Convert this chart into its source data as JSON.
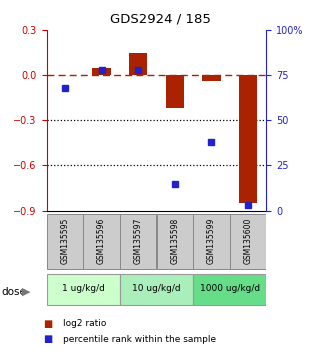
{
  "title": "GDS2924 / 185",
  "samples": [
    "GSM135595",
    "GSM135596",
    "GSM135597",
    "GSM135598",
    "GSM135599",
    "GSM135600"
  ],
  "log2_ratio": [
    0.0,
    0.05,
    0.15,
    -0.22,
    -0.04,
    -0.85
  ],
  "percentile_rank": [
    68,
    78,
    78,
    15,
    38,
    3
  ],
  "bar_color": "#aa2200",
  "dot_color": "#2222cc",
  "ylim_left": [
    -0.9,
    0.3
  ],
  "ylim_right": [
    0,
    100
  ],
  "yticks_left": [
    -0.9,
    -0.6,
    -0.3,
    0.0,
    0.3
  ],
  "yticks_right": [
    0,
    25,
    50,
    75,
    100
  ],
  "ytick_labels_right": [
    "0",
    "25",
    "50",
    "75",
    "100%"
  ],
  "hlines": [
    -0.3,
    -0.6
  ],
  "dose_groups": [
    {
      "label": "1 ug/kg/d",
      "start": 0,
      "end": 2,
      "color": "#ccffcc"
    },
    {
      "label": "10 ug/kg/d",
      "start": 2,
      "end": 4,
      "color": "#aaeebb"
    },
    {
      "label": "1000 ug/kg/d",
      "start": 4,
      "end": 6,
      "color": "#66dd88"
    }
  ],
  "dose_label": "dose",
  "legend_bar_label": "log2 ratio",
  "legend_dot_label": "percentile rank within the sample",
  "bar_width": 0.5,
  "left_axis_color": "#cc0000",
  "right_axis_color": "#2222cc"
}
